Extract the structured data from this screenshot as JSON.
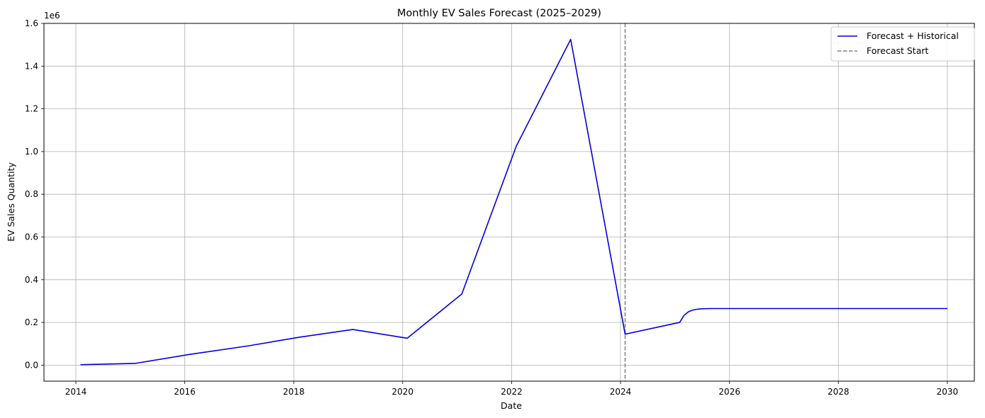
{
  "chart_data": {
    "type": "line",
    "title": "Monthly EV Sales Forecast (2025–2029)",
    "xlabel": "Date",
    "ylabel": "EV Sales Quantity",
    "y_offset_label": "1e6",
    "xlim": [
      "2013-06-01",
      "2030-07-01"
    ],
    "ylim": [
      -75000,
      1600000
    ],
    "x_ticks": [
      "2014-01-01",
      "2016-01-01",
      "2018-01-01",
      "2020-01-01",
      "2022-01-01",
      "2024-01-01",
      "2026-01-01",
      "2028-01-01",
      "2030-01-01"
    ],
    "x_tick_labels": [
      "2014",
      "2016",
      "2018",
      "2020",
      "2022",
      "2024",
      "2026",
      "2028",
      "2030"
    ],
    "y_ticks": [
      0,
      200000,
      400000,
      600000,
      800000,
      1000000,
      1200000,
      1400000,
      1600000
    ],
    "y_tick_labels": [
      "0.0",
      "0.2",
      "0.4",
      "0.6",
      "0.8",
      "1.0",
      "1.2",
      "1.4",
      "1.6"
    ],
    "grid": true,
    "legend_position": "top-right",
    "series": [
      {
        "name": "Forecast + Historical",
        "color": "#0000dd",
        "style": "solid",
        "points": [
          [
            "2014-02-01",
            2000
          ],
          [
            "2015-02-01",
            8000
          ],
          [
            "2016-02-01",
            50000
          ],
          [
            "2017-03-01",
            90000
          ],
          [
            "2018-02-01",
            130000
          ],
          [
            "2019-02-01",
            167000
          ],
          [
            "2020-02-01",
            126000
          ],
          [
            "2021-02-01",
            333000
          ],
          [
            "2022-02-01",
            1025000
          ],
          [
            "2023-02-01",
            1525000
          ],
          [
            "2024-02-01",
            145000
          ],
          [
            "2025-02-01",
            200000
          ],
          [
            "2025-03-01",
            232000
          ],
          [
            "2025-04-01",
            250000
          ],
          [
            "2025-05-01",
            258000
          ],
          [
            "2025-06-01",
            262000
          ],
          [
            "2025-07-01",
            264000
          ],
          [
            "2025-09-01",
            265000
          ],
          [
            "2026-01-01",
            265000
          ],
          [
            "2027-01-01",
            265000
          ],
          [
            "2028-01-01",
            265000
          ],
          [
            "2029-01-01",
            265000
          ],
          [
            "2030-01-01",
            265000
          ]
        ]
      }
    ],
    "annotations": [
      {
        "type": "vline",
        "x": "2024-02-01",
        "name": "Forecast Start",
        "color": "#808080",
        "style": "dashed"
      }
    ]
  }
}
